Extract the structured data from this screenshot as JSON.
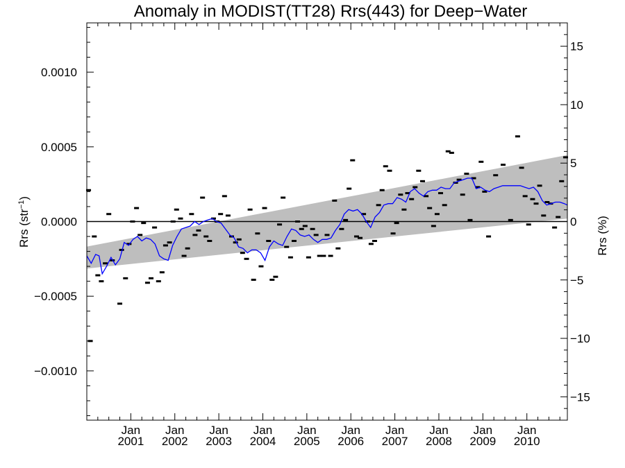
{
  "chart_data": {
    "type": "scatter",
    "title": "Anomaly in MODIST(TT28) Rrs(443) for Deep−Water",
    "ylabel_left": {
      "main": "Rrs (str",
      "sup": "−1",
      "close": ")"
    },
    "ylabel_right": "Rrs (%)",
    "xlim": [
      2000.0,
      2010.92
    ],
    "ylim": [
      -0.00133,
      0.00133
    ],
    "ylim_right_percent": [
      -17,
      17
    ],
    "x_ticks": [
      {
        "top": "Jan",
        "bottom": "2001",
        "x": 2001.0
      },
      {
        "top": "Jan",
        "bottom": "2002",
        "x": 2002.0
      },
      {
        "top": "Jan",
        "bottom": "2003",
        "x": 2003.0
      },
      {
        "top": "Jan",
        "bottom": "2004",
        "x": 2004.0
      },
      {
        "top": "Jan",
        "bottom": "2005",
        "x": 2005.0
      },
      {
        "top": "Jan",
        "bottom": "2006",
        "x": 2006.0
      },
      {
        "top": "Jan",
        "bottom": "2007",
        "x": 2007.0
      },
      {
        "top": "Jan",
        "bottom": "2008",
        "x": 2008.0
      },
      {
        "top": "Jan",
        "bottom": "2009",
        "x": 2009.0
      },
      {
        "top": "Jan",
        "bottom": "2010",
        "x": 2010.0
      }
    ],
    "y_ticks_left": [
      {
        "value": 0.001,
        "label": "0.0010"
      },
      {
        "value": 0.0005,
        "label": "0.0005"
      },
      {
        "value": 0.0,
        "label": "0.0000"
      },
      {
        "value": -0.0005,
        "label": "−0.0005"
      },
      {
        "value": -0.001,
        "label": "−0.0010"
      }
    ],
    "y_ticks_right": [
      {
        "value": 15,
        "label": "15"
      },
      {
        "value": 10,
        "label": "10"
      },
      {
        "value": 5,
        "label": "5"
      },
      {
        "value": 0,
        "label": "0"
      },
      {
        "value": -5,
        "label": "−5"
      },
      {
        "value": -10,
        "label": "−10"
      },
      {
        "value": -15,
        "label": "−15"
      }
    ],
    "band": {
      "color": "#bebebe",
      "start": {
        "x": 2000.0,
        "lower": -0.000315,
        "upper": -0.000168
      },
      "end": {
        "x": 2010.92,
        "lower": 2e-05,
        "upper": 0.000445
      }
    },
    "zero_line": {
      "value": 0.0,
      "color": "#000000"
    },
    "marker_color": "#000000",
    "points": [
      [
        2000.04,
        0.00021
      ],
      [
        2000.08,
        -0.0008
      ],
      [
        2000.17,
        -0.0001
      ],
      [
        2000.25,
        -0.00036
      ],
      [
        2000.33,
        -0.0004
      ],
      [
        2000.42,
        -0.00028
      ],
      [
        2000.5,
        5e-05
      ],
      [
        2000.58,
        -0.00026
      ],
      [
        2000.75,
        -0.00055
      ],
      [
        2000.79,
        -0.00019
      ],
      [
        2000.88,
        -0.00038
      ],
      [
        2000.96,
        -0.00015
      ],
      [
        2001.04,
        0.0
      ],
      [
        2001.13,
        9e-05
      ],
      [
        2001.21,
        -9e-05
      ],
      [
        2001.29,
        -1e-05
      ],
      [
        2001.38,
        -0.00041
      ],
      [
        2001.46,
        -0.00038
      ],
      [
        2001.54,
        -4e-05
      ],
      [
        2001.63,
        -0.0004
      ],
      [
        2001.71,
        -0.00034
      ],
      [
        2001.79,
        -0.00016
      ],
      [
        2001.88,
        -0.00014
      ],
      [
        2001.96,
        0.0
      ],
      [
        2002.04,
        8e-05
      ],
      [
        2002.13,
        2e-05
      ],
      [
        2002.21,
        -0.00023
      ],
      [
        2002.29,
        -0.00018
      ],
      [
        2002.38,
        5e-05
      ],
      [
        2002.46,
        -9e-05
      ],
      [
        2002.54,
        -6e-05
      ],
      [
        2002.63,
        0.00016
      ],
      [
        2002.71,
        -0.0001
      ],
      [
        2002.79,
        -0.00013
      ],
      [
        2002.88,
        2e-05
      ],
      [
        2002.96,
        0.0
      ],
      [
        2003.04,
        5e-05
      ],
      [
        2003.13,
        0.00017
      ],
      [
        2003.21,
        4e-05
      ],
      [
        2003.29,
        -0.0001
      ],
      [
        2003.38,
        -0.00014
      ],
      [
        2003.46,
        -0.00012
      ],
      [
        2003.54,
        -0.00021
      ],
      [
        2003.63,
        -0.00025
      ],
      [
        2003.71,
        8e-05
      ],
      [
        2003.79,
        -0.00039
      ],
      [
        2003.88,
        -8e-05
      ],
      [
        2003.96,
        -0.0003
      ],
      [
        2004.04,
        9e-05
      ],
      [
        2004.13,
        -0.00013
      ],
      [
        2004.21,
        -0.00039
      ],
      [
        2004.29,
        -0.00037
      ],
      [
        2004.38,
        -2e-05
      ],
      [
        2004.46,
        0.00016
      ],
      [
        2004.54,
        -0.00017
      ],
      [
        2004.63,
        -0.00024
      ],
      [
        2004.71,
        -0.00013
      ],
      [
        2004.79,
        0.0
      ],
      [
        2004.88,
        -5e-05
      ],
      [
        2004.96,
        -3e-05
      ],
      [
        2005.04,
        -0.00024
      ],
      [
        2005.13,
        -5e-05
      ],
      [
        2005.21,
        -9e-05
      ],
      [
        2005.29,
        -0.00023
      ],
      [
        2005.38,
        -0.00023
      ],
      [
        2005.46,
        -9e-05
      ],
      [
        2005.54,
        -0.00023
      ],
      [
        2005.63,
        0.00014
      ],
      [
        2005.71,
        -0.00018
      ],
      [
        2005.79,
        -5e-05
      ],
      [
        2005.88,
        1e-05
      ],
      [
        2005.96,
        0.00022
      ],
      [
        2006.04,
        0.00041
      ],
      [
        2006.13,
        -0.0001
      ],
      [
        2006.21,
        -0.00011
      ],
      [
        2006.29,
        5e-05
      ],
      [
        2006.38,
        0.0
      ],
      [
        2006.46,
        -0.00015
      ],
      [
        2006.54,
        -0.00013
      ],
      [
        2006.63,
        0.00011
      ],
      [
        2006.71,
        0.00021
      ],
      [
        2006.79,
        0.00037
      ],
      [
        2006.88,
        0.00034
      ],
      [
        2006.96,
        -8e-05
      ],
      [
        2007.04,
        -1e-05
      ],
      [
        2007.13,
        0.00018
      ],
      [
        2007.21,
        8e-05
      ],
      [
        2007.29,
        0.00019
      ],
      [
        2007.38,
        0.00015
      ],
      [
        2007.46,
        0.00023
      ],
      [
        2007.54,
        0.00034
      ],
      [
        2007.63,
        0.00027
      ],
      [
        2007.71,
        0.00017
      ],
      [
        2007.79,
        9e-05
      ],
      [
        2007.88,
        -3e-05
      ],
      [
        2007.96,
        5e-05
      ],
      [
        2008.04,
        0.00019
      ],
      [
        2008.13,
        0.00011
      ],
      [
        2008.21,
        0.00047
      ],
      [
        2008.29,
        0.00046
      ],
      [
        2008.38,
        0.00026
      ],
      [
        2008.46,
        0.00028
      ],
      [
        2008.54,
        0.00018
      ],
      [
        2008.63,
        0.00032
      ],
      [
        2008.71,
        1e-05
      ],
      [
        2008.79,
        0.00029
      ],
      [
        2008.88,
        0.00023
      ],
      [
        2008.96,
        0.0004
      ],
      [
        2009.04,
        0.0002
      ],
      [
        2009.13,
        -0.0001
      ],
      [
        2009.29,
        0.00031
      ],
      [
        2009.46,
        0.00038
      ],
      [
        2009.63,
        1e-05
      ],
      [
        2009.79,
        0.00057
      ],
      [
        2009.88,
        0.00036
      ],
      [
        2009.96,
        0.00017
      ],
      [
        2010.04,
        -2e-05
      ],
      [
        2010.13,
        0.00015
      ],
      [
        2010.21,
        0.00012
      ],
      [
        2010.29,
        0.00024
      ],
      [
        2010.38,
        4e-05
      ],
      [
        2010.46,
        0.00013
      ],
      [
        2010.54,
        0.00012
      ],
      [
        2010.63,
        -4e-05
      ],
      [
        2010.71,
        3e-05
      ],
      [
        2010.79,
        0.00027
      ],
      [
        2010.88,
        0.00043
      ]
    ],
    "mean_line": {
      "color": "#0000ff",
      "points": [
        [
          2000.0,
          -0.00023
        ],
        [
          2000.1,
          -0.00028
        ],
        [
          2000.2,
          -0.00022
        ],
        [
          2000.28,
          -0.00023
        ],
        [
          2000.35,
          -0.00035
        ],
        [
          2000.45,
          -0.0003
        ],
        [
          2000.55,
          -0.00024
        ],
        [
          2000.65,
          -0.00029
        ],
        [
          2000.75,
          -0.00025
        ],
        [
          2000.85,
          -0.00014
        ],
        [
          2000.95,
          -0.00016
        ],
        [
          2001.05,
          -0.00012
        ],
        [
          2001.15,
          -0.0001
        ],
        [
          2001.25,
          -0.00013
        ],
        [
          2001.35,
          -0.00011
        ],
        [
          2001.45,
          -0.00012
        ],
        [
          2001.55,
          -0.00015
        ],
        [
          2001.65,
          -0.00023
        ],
        [
          2001.75,
          -0.00025
        ],
        [
          2001.85,
          -0.00026
        ],
        [
          2001.95,
          -0.00016
        ],
        [
          2002.05,
          -0.0001
        ],
        [
          2002.15,
          -5e-05
        ],
        [
          2002.25,
          -4e-05
        ],
        [
          2002.35,
          -3e-05
        ],
        [
          2002.45,
          0.0
        ],
        [
          2002.55,
          -2e-05
        ],
        [
          2002.65,
          0.0
        ],
        [
          2002.75,
          1e-05
        ],
        [
          2002.85,
          2e-05
        ],
        [
          2002.95,
          0.0
        ],
        [
          2003.05,
          -1e-05
        ],
        [
          2003.15,
          -5e-05
        ],
        [
          2003.25,
          -9e-05
        ],
        [
          2003.35,
          -0.00011
        ],
        [
          2003.45,
          -0.00017
        ],
        [
          2003.55,
          -0.00018
        ],
        [
          2003.65,
          -0.00021
        ],
        [
          2003.75,
          -0.00019
        ],
        [
          2003.85,
          -0.00019
        ],
        [
          2003.95,
          -0.00021
        ],
        [
          2004.05,
          -0.00026
        ],
        [
          2004.15,
          -0.00017
        ],
        [
          2004.25,
          -0.00013
        ],
        [
          2004.35,
          -0.00015
        ],
        [
          2004.45,
          -0.00016
        ],
        [
          2004.55,
          -0.0001
        ],
        [
          2004.65,
          -5e-05
        ],
        [
          2004.75,
          -6e-05
        ],
        [
          2004.85,
          -9e-05
        ],
        [
          2004.95,
          -0.0001
        ],
        [
          2005.05,
          -9e-05
        ],
        [
          2005.15,
          -0.00012
        ],
        [
          2005.25,
          -0.00014
        ],
        [
          2005.35,
          -0.00012
        ],
        [
          2005.45,
          -0.00012
        ],
        [
          2005.55,
          -0.00011
        ],
        [
          2005.65,
          -6e-05
        ],
        [
          2005.75,
          -2e-05
        ],
        [
          2005.85,
          5e-05
        ],
        [
          2005.95,
          8e-05
        ],
        [
          2006.05,
          7e-05
        ],
        [
          2006.15,
          8e-05
        ],
        [
          2006.25,
          5e-05
        ],
        [
          2006.35,
          0.0
        ],
        [
          2006.45,
          -4e-05
        ],
        [
          2006.55,
          3e-05
        ],
        [
          2006.65,
          6e-05
        ],
        [
          2006.75,
          0.00011
        ],
        [
          2006.85,
          0.00012
        ],
        [
          2006.95,
          0.00012
        ],
        [
          2007.05,
          0.00016
        ],
        [
          2007.15,
          0.00015
        ],
        [
          2007.25,
          0.00013
        ],
        [
          2007.35,
          0.0002
        ],
        [
          2007.45,
          0.00022
        ],
        [
          2007.55,
          0.00019
        ],
        [
          2007.65,
          0.00017
        ],
        [
          2007.75,
          0.0002
        ],
        [
          2007.85,
          0.00021
        ],
        [
          2007.95,
          0.00021
        ],
        [
          2008.05,
          0.00023
        ],
        [
          2008.15,
          0.00022
        ],
        [
          2008.25,
          0.00022
        ],
        [
          2008.35,
          0.00026
        ],
        [
          2008.45,
          0.00027
        ],
        [
          2008.55,
          0.00028
        ],
        [
          2008.65,
          0.00029
        ],
        [
          2008.75,
          0.00029
        ],
        [
          2008.85,
          0.00022
        ],
        [
          2008.95,
          0.00023
        ],
        [
          2009.05,
          0.00021
        ],
        [
          2009.15,
          0.0002
        ],
        [
          2009.25,
          0.00022
        ],
        [
          2009.35,
          0.00023
        ],
        [
          2009.45,
          0.00024
        ],
        [
          2009.55,
          0.00024
        ],
        [
          2009.65,
          0.00024
        ],
        [
          2009.75,
          0.00024
        ],
        [
          2009.85,
          0.00024
        ],
        [
          2009.95,
          0.00023
        ],
        [
          2010.05,
          0.00022
        ],
        [
          2010.15,
          0.00023
        ],
        [
          2010.25,
          0.0002
        ],
        [
          2010.35,
          0.00014
        ],
        [
          2010.45,
          0.00011
        ],
        [
          2010.55,
          0.00012
        ],
        [
          2010.65,
          0.00013
        ],
        [
          2010.75,
          0.00013
        ],
        [
          2010.85,
          0.00012
        ],
        [
          2010.92,
          0.00011
        ]
      ]
    },
    "grid": false
  }
}
